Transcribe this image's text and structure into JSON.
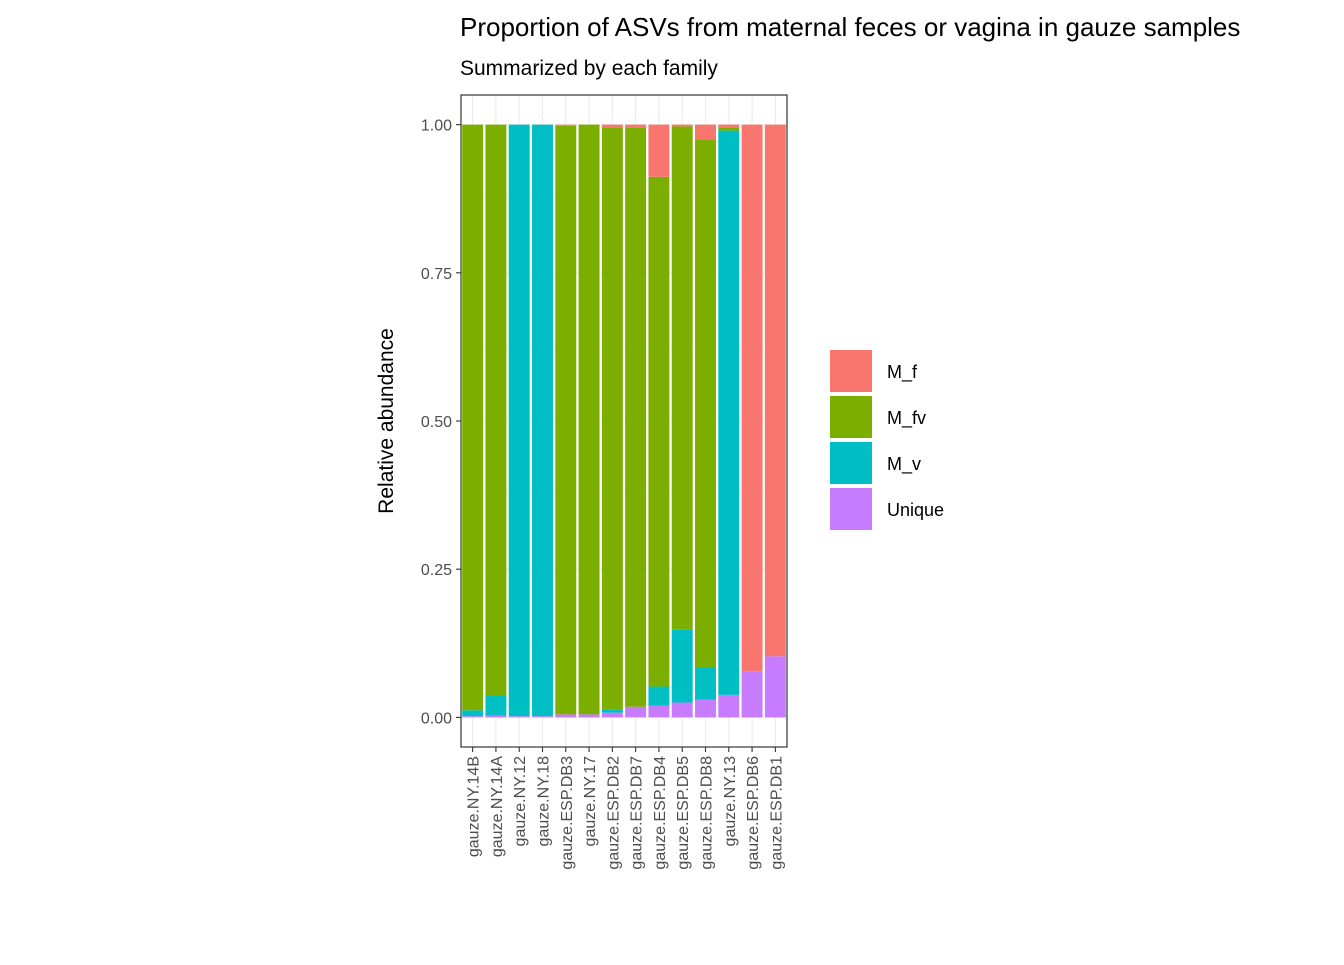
{
  "chart_data": {
    "type": "bar",
    "stacked": true,
    "title": "Proportion of ASVs from maternal feces or vagina in gauze samples",
    "subtitle": "Summarized by each family",
    "xlabel": "",
    "ylabel": "Relative abundance",
    "ylim": [
      -0.05,
      1.05
    ],
    "yticks": [
      0,
      0.25,
      0.5,
      0.75,
      1
    ],
    "ytick_labels": [
      "0.00",
      "0.25",
      "0.50",
      "0.75",
      "1.00"
    ],
    "grid": true,
    "legend_position": "right",
    "categories": [
      "gauze.NY.14B",
      "gauze.NY.14A",
      "gauze.NY.12",
      "gauze.NY.18",
      "gauze.ESP.DB3",
      "gauze.NY.17",
      "gauze.ESP.DB2",
      "gauze.ESP.DB7",
      "gauze.ESP.DB4",
      "gauze.ESP.DB5",
      "gauze.ESP.DB8",
      "gauze.NY.13",
      "gauze.ESP.DB6",
      "gauze.ESP.DB1"
    ],
    "series": [
      {
        "name": "Unique",
        "color": "#C77CFF",
        "values": [
          0.002,
          0.003,
          0.002,
          0.002,
          0.005,
          0.005,
          0.008,
          0.018,
          0.02,
          0.025,
          0.03,
          0.038,
          0.078,
          0.103
        ]
      },
      {
        "name": "M_v",
        "color": "#00BFC4",
        "values": [
          0.01,
          0.033,
          0.998,
          0.998,
          0.0,
          0.0,
          0.005,
          0.0,
          0.032,
          0.123,
          0.055,
          0.952,
          0.0,
          0.0
        ]
      },
      {
        "name": "M_fv",
        "color": "#7CAE00",
        "values": [
          0.988,
          0.964,
          0.0,
          0.0,
          0.993,
          0.995,
          0.982,
          0.977,
          0.86,
          0.849,
          0.89,
          0.005,
          0.0,
          0.0
        ]
      },
      {
        "name": "M_f",
        "color": "#F8766D",
        "values": [
          0.0,
          0.0,
          0.0,
          0.0,
          0.002,
          0.0,
          0.005,
          0.005,
          0.088,
          0.003,
          0.025,
          0.005,
          0.922,
          0.897
        ]
      }
    ],
    "legend_order": [
      "M_f",
      "M_fv",
      "M_v",
      "Unique"
    ]
  },
  "colors": {
    "panel_border": "#333333",
    "grid": "#ebebeb",
    "tick": "#333333"
  }
}
